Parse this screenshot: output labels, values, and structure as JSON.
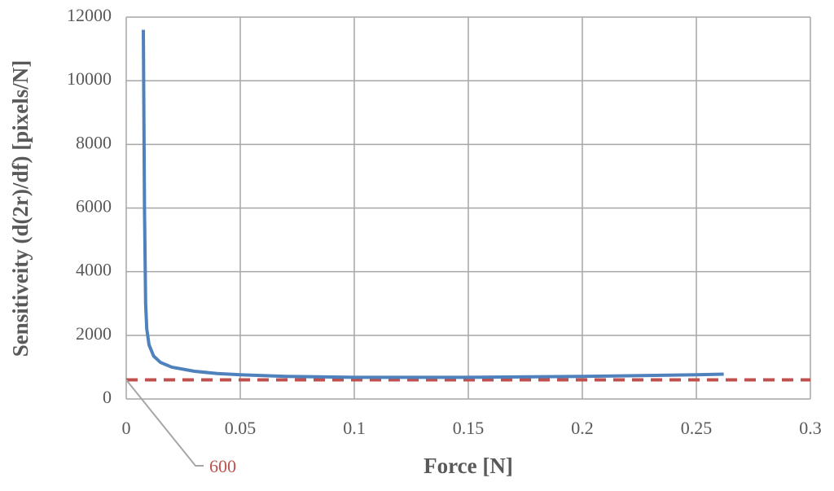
{
  "chart_data": {
    "type": "line",
    "x_label": "Force [N]",
    "y_label": "Sensitiveity (d(2r)/df) [pixels/N]",
    "xlim": [
      0,
      0.3
    ],
    "xticks": [
      0,
      0.05,
      0.1,
      0.15,
      0.2,
      0.25,
      0.3
    ],
    "ylim": [
      0,
      12000
    ],
    "yticks": [
      0,
      2000,
      4000,
      6000,
      8000,
      10000,
      12000
    ],
    "grid": true,
    "series": [
      {
        "color": "#4f81bd",
        "x": [
          0.0075,
          0.008,
          0.0085,
          0.009,
          0.01,
          0.012,
          0.015,
          0.02,
          0.03,
          0.04,
          0.05,
          0.07,
          0.1,
          0.15,
          0.2,
          0.25,
          0.262
        ],
        "values": [
          11600,
          6000,
          3000,
          2200,
          1700,
          1350,
          1150,
          1000,
          870,
          800,
          760,
          710,
          680,
          680,
          710,
          760,
          780
        ]
      }
    ],
    "reference_line": {
      "value": 600,
      "label": "600",
      "color": "#c0504d"
    }
  }
}
